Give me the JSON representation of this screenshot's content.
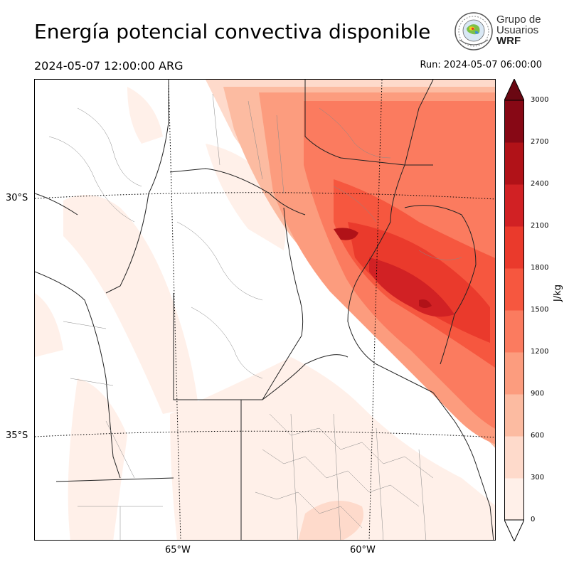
{
  "header": {
    "title": "Energía potencial convectiva disponible",
    "valid_time": "2024-05-07 12:00:00 ARG",
    "run_time": "Run: 2024-05-07 06:00:00"
  },
  "logo": {
    "line1": "Grupo de",
    "line2": "Usuarios",
    "line3": "WRF"
  },
  "map": {
    "variable": "CAPE",
    "latitude_labels": [
      "30°S",
      "35°S"
    ],
    "longitude_labels": [
      "65°W",
      "60°W"
    ],
    "region": "centro de Argentina"
  },
  "colorbar": {
    "unit": "J/kg",
    "ticks": [
      "0",
      "300",
      "600",
      "900",
      "1200",
      "1500",
      "1800",
      "2100",
      "2400",
      "2700",
      "3000"
    ],
    "colors": [
      "#fff0e9",
      "#fedacb",
      "#fcbba1",
      "#fc9c7e",
      "#fb7b5f",
      "#f6573f",
      "#ea3a2c",
      "#d12124",
      "#b11218",
      "#870815"
    ],
    "extend": "both"
  }
}
